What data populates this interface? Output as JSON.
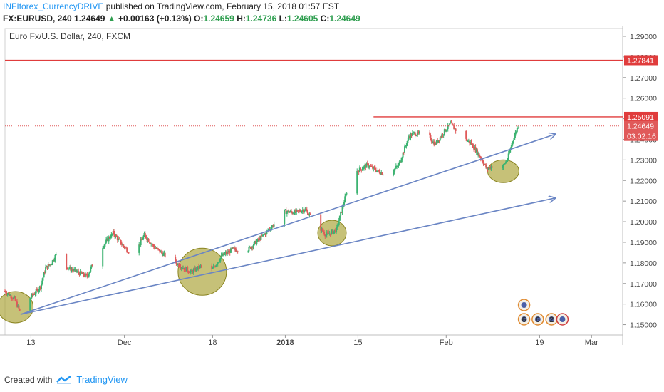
{
  "header": {
    "author": "INFIforex_CurrencyDRIVE",
    "published_text": "published on TradingView.com, February 15, 2018 01:57 EST",
    "symbol": "FX:EURUSD, 240",
    "last": "1.24649",
    "change": "+0.00163 (+0.13%)",
    "open_label": "O:",
    "open": "1.24659",
    "high_label": "H:",
    "high": "1.24736",
    "low_label": "L:",
    "low": "1.24605",
    "close_label": "C:",
    "close": "1.24649"
  },
  "footer": {
    "created_with": "Created with",
    "brand": "TradingView"
  },
  "colors": {
    "up": "#3cb371",
    "down": "#e05a5a",
    "trend": "#6a85c4",
    "resistance": "#e03c3c",
    "ellipse_fill": "#a8a030",
    "axis_text": "#444444"
  },
  "chart_data": {
    "type": "candlestick",
    "title": "Euro Fx/U.S. Dollar, 240, FXCM",
    "ylim": [
      1.145,
      1.2938
    ],
    "yticks": [
      1.15,
      1.16,
      1.17,
      1.18,
      1.19,
      1.2,
      1.21,
      1.22,
      1.23,
      1.24,
      1.25,
      1.26,
      1.27,
      1.28,
      1.29
    ],
    "xlim": [
      "2017-11-08",
      "2018-03-07"
    ],
    "xticks": [
      {
        "date": "2017-11-13",
        "label": "13"
      },
      {
        "date": "2017-12-01",
        "label": "Dec"
      },
      {
        "date": "2017-12-18",
        "label": "18"
      },
      {
        "date": "2018-01-01",
        "label": "2018"
      },
      {
        "date": "2018-01-15",
        "label": "15"
      },
      {
        "date": "2018-02-01",
        "label": "Feb"
      },
      {
        "date": "2018-02-19",
        "label": "19"
      },
      {
        "date": "2018-03-01",
        "label": "Mar"
      }
    ],
    "price_path": [
      [
        "2017-11-08",
        1.1665
      ],
      [
        "2017-11-10",
        1.1625
      ],
      [
        "2017-11-11",
        1.1565
      ],
      [
        "2017-11-13",
        1.163
      ],
      [
        "2017-11-15",
        1.1685
      ],
      [
        "2017-11-16",
        1.1775
      ],
      [
        "2017-11-17",
        1.1795
      ],
      [
        "2017-11-18",
        1.184
      ],
      [
        "2017-11-20",
        1.178
      ],
      [
        "2017-11-23",
        1.1745
      ],
      [
        "2017-11-24",
        1.1735
      ],
      [
        "2017-11-26",
        1.1845
      ],
      [
        "2017-11-28",
        1.1915
      ],
      [
        "2017-11-29",
        1.1945
      ],
      [
        "2017-12-01",
        1.188
      ],
      [
        "2017-12-03",
        1.1835
      ],
      [
        "2017-12-05",
        1.1935
      ],
      [
        "2017-12-07",
        1.1875
      ],
      [
        "2017-12-09",
        1.1835
      ],
      [
        "2017-12-12",
        1.1785
      ],
      [
        "2017-12-14",
        1.1755
      ],
      [
        "2017-12-16",
        1.1785
      ],
      [
        "2017-12-17",
        1.1815
      ],
      [
        "2017-12-18",
        1.1765
      ],
      [
        "2017-12-20",
        1.1835
      ],
      [
        "2017-12-22",
        1.1865
      ],
      [
        "2017-12-25",
        1.1865
      ],
      [
        "2017-12-28",
        1.1935
      ],
      [
        "2017-12-31",
        1.2015
      ],
      [
        "2018-01-01",
        1.205
      ],
      [
        "2018-01-03",
        1.2045
      ],
      [
        "2018-01-05",
        1.206
      ],
      [
        "2018-01-07",
        1.1995
      ],
      [
        "2018-01-09",
        1.1935
      ],
      [
        "2018-01-11",
        1.196
      ],
      [
        "2018-01-13",
        1.2145
      ],
      [
        "2018-01-15",
        1.2245
      ],
      [
        "2018-01-17",
        1.2275
      ],
      [
        "2018-01-19",
        1.2245
      ],
      [
        "2018-01-21",
        1.2225
      ],
      [
        "2018-01-23",
        1.2275
      ],
      [
        "2018-01-25",
        1.2415
      ],
      [
        "2018-01-26",
        1.243
      ],
      [
        "2018-01-27",
        1.2425
      ],
      [
        "2018-01-29",
        1.241
      ],
      [
        "2018-01-30",
        1.2375
      ],
      [
        "2018-02-01",
        1.2445
      ],
      [
        "2018-02-02",
        1.2475
      ],
      [
        "2018-02-04",
        1.2415
      ],
      [
        "2018-02-06",
        1.238
      ],
      [
        "2018-02-08",
        1.2305
      ],
      [
        "2018-02-09",
        1.2255
      ],
      [
        "2018-02-11",
        1.2285
      ],
      [
        "2018-02-12",
        1.2265
      ],
      [
        "2018-02-13",
        1.2305
      ],
      [
        "2018-02-14",
        1.2395
      ],
      [
        "2018-02-15",
        1.2465
      ]
    ],
    "horizontal_lines": [
      {
        "value": 1.27841,
        "label": "1.27841",
        "from": "2017-11-08"
      },
      {
        "value": 1.25091,
        "label": "1.25091",
        "from": "2018-01-18"
      }
    ],
    "last_price": {
      "value": 1.24649,
      "label": "1.24649",
      "countdown": "03:02:16"
    },
    "trend_lines": [
      {
        "from": [
          "2017-11-11",
          1.155
        ],
        "to": [
          "2018-02-22",
          1.2425
        ]
      },
      {
        "from": [
          "2017-11-11",
          1.155
        ],
        "to": [
          "2018-02-22",
          1.2115
        ]
      }
    ],
    "ellipses": [
      {
        "center": [
          "2017-11-10",
          1.1585
        ]
      },
      {
        "center": [
          "2017-12-16",
          1.1757
        ]
      },
      {
        "center": [
          "2018-01-10",
          1.1945
        ]
      },
      {
        "center": [
          "2018-02-12",
          1.2245
        ]
      }
    ],
    "event_markers": [
      {
        "date": "2018-02-16",
        "text": ""
      },
      {
        "date": "2018-02-16",
        "text": "6"
      },
      {
        "date": "2018-02-17",
        "text": "6"
      },
      {
        "date": "2018-02-18",
        "text": "2"
      },
      {
        "date": "2018-02-19",
        "text": ""
      }
    ]
  }
}
